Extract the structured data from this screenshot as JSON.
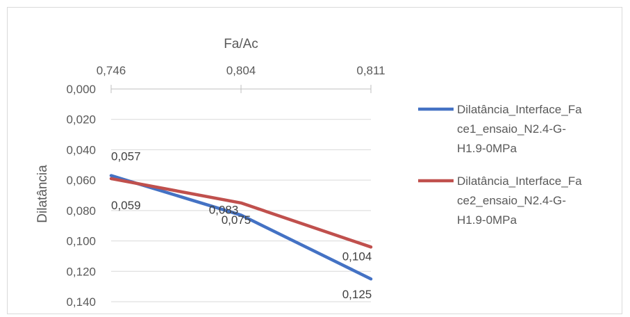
{
  "chart_data": {
    "type": "line",
    "title": "",
    "xlabel": "Fa/Ac",
    "ylabel": "Dilatância",
    "x_axis_position": "top",
    "y_reversed": true,
    "categories": [
      "0,746",
      "0,804",
      "0,811"
    ],
    "ylim": [
      0,
      0.14
    ],
    "yticks": [
      "0,000",
      "0,020",
      "0,040",
      "0,060",
      "0,080",
      "0,100",
      "0,120",
      "0,140"
    ],
    "grid": true,
    "legend_position": "right",
    "series": [
      {
        "name": "Dilatância_Interface_Face1_ensaio_N2.4-G-H1.9-0MPa",
        "legend_lines": [
          "Dilatância_Interface_Fa",
          "ce1_ensaio_N2.4-G-",
          "H1.9-0MPa"
        ],
        "color": "#4472c4",
        "values": [
          0.057,
          0.083,
          0.125
        ],
        "labels": [
          "0,057",
          "0,083",
          "0,125"
        ]
      },
      {
        "name": "Dilatância_Interface_Face2_ensaio_N2.4-G-H1.9-0MPa",
        "legend_lines": [
          "Dilatância_Interface_Fa",
          "ce2_ensaio_N2.4-G-",
          "H1.9-0MPa"
        ],
        "color": "#c0504d",
        "values": [
          0.059,
          0.075,
          0.104
        ],
        "labels": [
          "0,059",
          "0,075",
          "0,104"
        ]
      }
    ]
  }
}
